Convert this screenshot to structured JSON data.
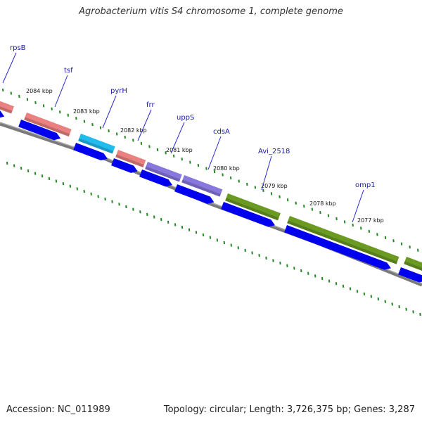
{
  "title": "Agrobacterium vitis S4 chromosome 1, complete genome",
  "footer": {
    "accession": "Accession: NC_011989",
    "summary": "Topology: circular; Length: 3,726,375 bp; Genes: 3,287"
  },
  "colors": {
    "backbone": "#7a7a7a",
    "cds_arrow": "#0000ee",
    "gc_dots": "#228822",
    "rna_gene": "#ea8080",
    "pyrimidine_gene": "#22bbee",
    "uppS_cdsA_gene": "#8877dd",
    "membrane_gene": "#6a9a22",
    "label_text": "#1a1aa8"
  },
  "gene_labels": [
    "rpsB",
    "tsf",
    "pyrH",
    "frr",
    "uppS",
    "cdsA",
    "Avi_2518",
    "omp1"
  ],
  "position_labels": [
    "2084 kbp",
    "2083 kbp",
    "2082 kbp",
    "2081 kbp",
    "2080 kbp",
    "2079 kbp",
    "2078 kbp",
    "2077 kbp"
  ]
}
